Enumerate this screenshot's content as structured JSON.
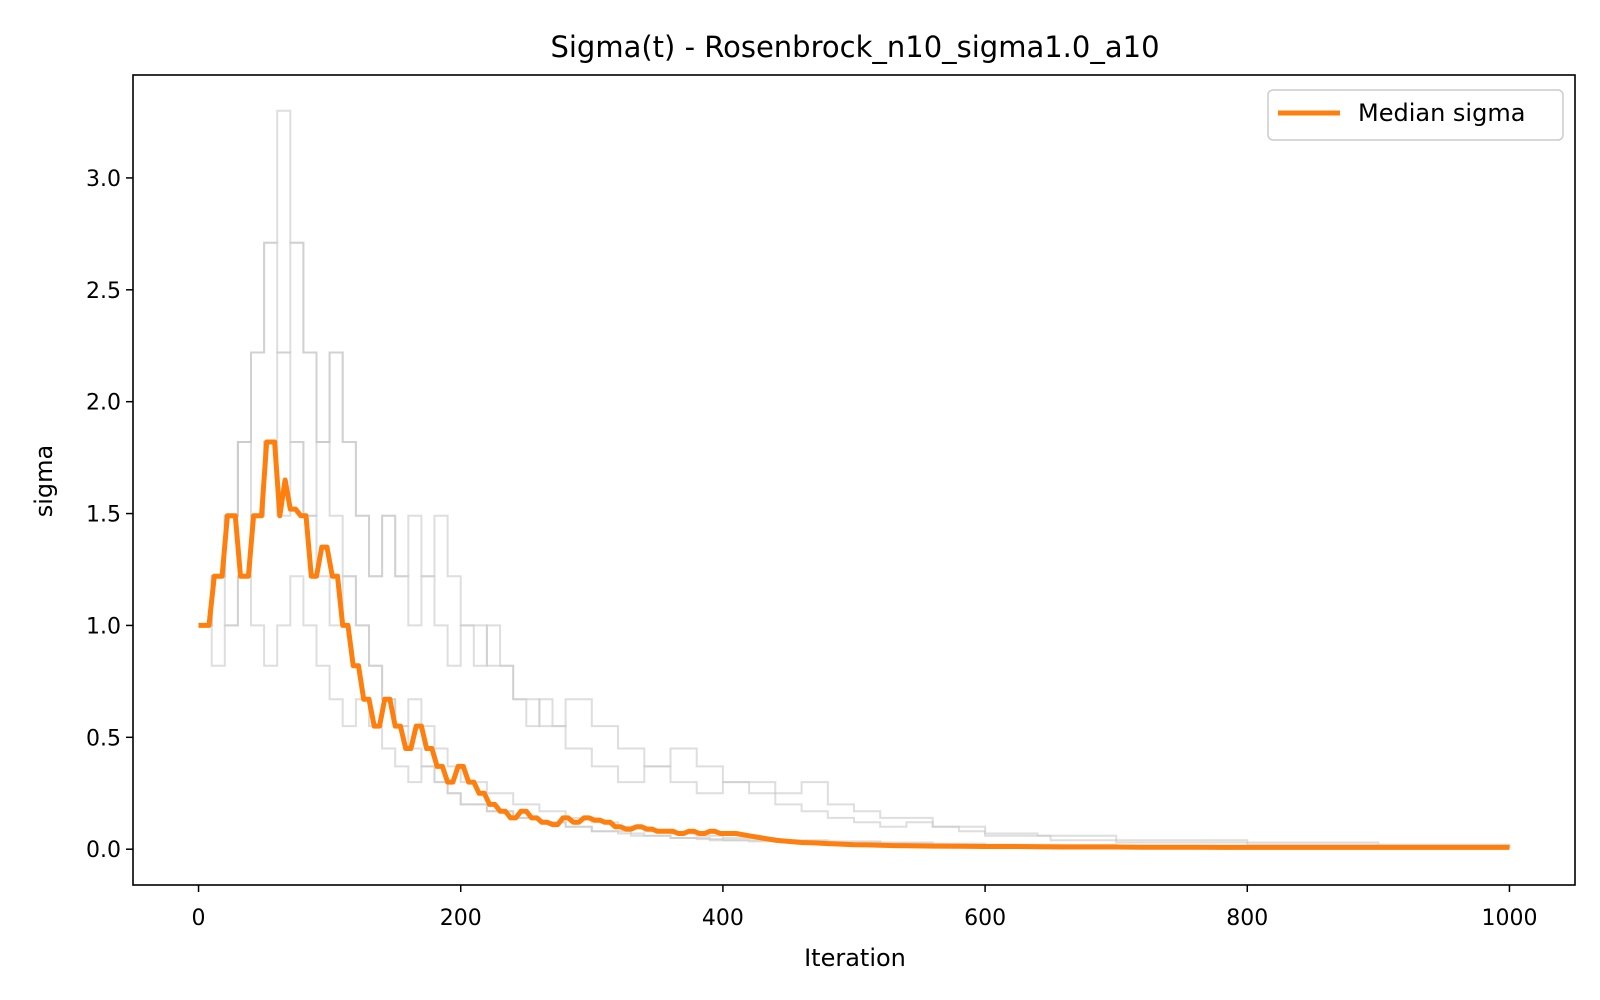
{
  "chart_data": {
    "type": "line",
    "title": "Sigma(t) - Rosenbrock_n10_sigma1.0_a10",
    "xlabel": "Iteration",
    "ylabel": "sigma",
    "xlim": [
      -50,
      1050
    ],
    "ylim": [
      -0.16,
      3.46
    ],
    "xticks": [
      0,
      200,
      400,
      600,
      800,
      1000
    ],
    "xtick_labels": [
      "0",
      "200",
      "400",
      "600",
      "800",
      "1000"
    ],
    "yticks": [
      0.0,
      0.5,
      1.0,
      1.5,
      2.0,
      2.5,
      3.0
    ],
    "ytick_labels": [
      "0.0",
      "0.5",
      "1.0",
      "1.5",
      "2.0",
      "2.5",
      "3.0"
    ],
    "grid": false,
    "legend": {
      "position": "upper right",
      "entries": [
        "Median sigma"
      ]
    },
    "colors": {
      "median": "#ff7f0e",
      "runs": "#c8c8c8"
    },
    "runs": [
      {
        "x": [
          0,
          10,
          20,
          30,
          40,
          50,
          60,
          70,
          80,
          90,
          100,
          110,
          120,
          130,
          140,
          150,
          160,
          170,
          180,
          190,
          200,
          220,
          240,
          260,
          280,
          300,
          330,
          360,
          390,
          420,
          450,
          480,
          520,
          560,
          600,
          650,
          700,
          800,
          900,
          1000
        ],
        "y": [
          1.0,
          1.22,
          1.49,
          1.82,
          2.22,
          2.71,
          3.3,
          2.71,
          2.22,
          1.82,
          1.49,
          1.22,
          1.0,
          0.82,
          0.67,
          0.55,
          0.45,
          0.37,
          0.3,
          0.25,
          0.2,
          0.17,
          0.14,
          0.12,
          0.1,
          0.08,
          0.06,
          0.05,
          0.04,
          0.035,
          0.03,
          0.025,
          0.02,
          0.015,
          0.012,
          0.01,
          0.008,
          0.006,
          0.005,
          0.005
        ]
      },
      {
        "x": [
          0,
          10,
          20,
          30,
          40,
          50,
          60,
          70,
          80,
          90,
          100,
          110,
          120,
          130,
          140,
          150,
          160,
          170,
          180,
          190,
          200,
          210,
          220,
          230,
          240,
          250,
          260,
          270,
          280,
          300,
          320,
          340,
          360,
          380,
          400,
          420,
          440,
          460,
          480,
          500,
          520,
          560,
          600,
          650,
          700,
          800,
          900,
          1000
        ],
        "y": [
          1.0,
          1.22,
          1.49,
          1.82,
          2.22,
          2.71,
          2.22,
          2.71,
          2.22,
          1.82,
          2.22,
          1.82,
          1.49,
          1.22,
          1.49,
          1.22,
          1.49,
          1.22,
          1.49,
          1.22,
          1.0,
          0.82,
          1.0,
          0.82,
          0.67,
          0.55,
          0.67,
          0.55,
          0.45,
          0.37,
          0.3,
          0.37,
          0.45,
          0.37,
          0.3,
          0.3,
          0.25,
          0.3,
          0.2,
          0.17,
          0.14,
          0.1,
          0.06,
          0.04,
          0.03,
          0.02,
          0.015,
          0.01
        ]
      },
      {
        "x": [
          0,
          10,
          20,
          30,
          40,
          50,
          60,
          70,
          80,
          90,
          100,
          110,
          120,
          130,
          140,
          150,
          160,
          170,
          180,
          190,
          200,
          220,
          240,
          260,
          280,
          300,
          320,
          340,
          360,
          380,
          400,
          440,
          480,
          520,
          560,
          600,
          700,
          800,
          900,
          1000
        ],
        "y": [
          1.0,
          0.82,
          1.0,
          1.22,
          1.0,
          0.82,
          1.0,
          1.22,
          1.0,
          0.82,
          0.67,
          0.55,
          0.67,
          0.55,
          0.45,
          0.37,
          0.3,
          0.37,
          0.3,
          0.25,
          0.2,
          0.17,
          0.14,
          0.12,
          0.1,
          0.08,
          0.07,
          0.06,
          0.05,
          0.045,
          0.04,
          0.035,
          0.03,
          0.025,
          0.02,
          0.015,
          0.01,
          0.008,
          0.006,
          0.005
        ]
      },
      {
        "x": [
          0,
          10,
          20,
          30,
          40,
          50,
          60,
          70,
          80,
          90,
          100,
          110,
          120,
          130,
          140,
          150,
          160,
          170,
          180,
          190,
          200,
          220,
          240,
          260,
          280,
          300,
          320,
          340,
          360,
          380,
          400,
          440,
          480,
          520,
          560,
          600,
          700,
          800,
          900,
          1000
        ],
        "y": [
          1.0,
          1.22,
          1.49,
          1.82,
          1.49,
          1.82,
          2.22,
          1.82,
          1.49,
          1.22,
          1.0,
          1.22,
          1.0,
          0.82,
          0.67,
          0.55,
          0.67,
          0.55,
          0.45,
          0.37,
          0.3,
          0.25,
          0.2,
          0.17,
          0.14,
          0.12,
          0.1,
          0.08,
          0.07,
          0.06,
          0.05,
          0.04,
          0.035,
          0.03,
          0.025,
          0.02,
          0.015,
          0.01,
          0.008,
          0.006
        ]
      },
      {
        "x": [
          0,
          10,
          20,
          30,
          40,
          50,
          60,
          70,
          80,
          90,
          100,
          110,
          120,
          130,
          140,
          150,
          160,
          170,
          180,
          190,
          200,
          220,
          240,
          260,
          280,
          300,
          320,
          340,
          360,
          380,
          400,
          420,
          440,
          460,
          480,
          500,
          520,
          540,
          560,
          580,
          600,
          640,
          700,
          800,
          900,
          1000
        ],
        "y": [
          1.0,
          1.22,
          1.0,
          1.22,
          1.49,
          1.82,
          1.49,
          1.82,
          1.49,
          1.82,
          2.22,
          1.82,
          1.49,
          1.22,
          1.49,
          1.22,
          1.0,
          1.22,
          1.0,
          0.82,
          1.0,
          0.82,
          0.67,
          0.55,
          0.67,
          0.55,
          0.45,
          0.37,
          0.3,
          0.25,
          0.3,
          0.25,
          0.2,
          0.17,
          0.14,
          0.12,
          0.1,
          0.12,
          0.1,
          0.08,
          0.07,
          0.06,
          0.04,
          0.03,
          0.02,
          0.015
        ]
      }
    ],
    "series": [
      {
        "name": "Median sigma",
        "x": [
          0,
          8,
          12,
          18,
          22,
          28,
          32,
          38,
          42,
          48,
          52,
          58,
          62,
          66,
          70,
          74,
          78,
          82,
          86,
          90,
          94,
          98,
          102,
          106,
          110,
          114,
          118,
          122,
          126,
          130,
          134,
          138,
          142,
          146,
          150,
          154,
          158,
          162,
          166,
          170,
          174,
          178,
          182,
          186,
          190,
          194,
          198,
          202,
          206,
          210,
          214,
          218,
          222,
          226,
          230,
          234,
          238,
          242,
          246,
          250,
          254,
          258,
          262,
          266,
          270,
          274,
          278,
          282,
          286,
          290,
          294,
          298,
          302,
          306,
          310,
          314,
          318,
          322,
          326,
          330,
          334,
          338,
          342,
          346,
          350,
          354,
          358,
          362,
          366,
          370,
          374,
          378,
          382,
          386,
          390,
          394,
          398,
          402,
          410,
          420,
          430,
          440,
          450,
          460,
          470,
          480,
          490,
          500,
          510,
          520,
          530,
          540,
          560,
          580,
          600,
          620,
          640,
          660,
          680,
          700,
          720,
          740,
          760,
          780,
          800,
          820,
          840,
          860,
          880,
          900,
          920,
          940,
          960,
          980,
          1000
        ],
        "y": [
          1.0,
          1.0,
          1.22,
          1.22,
          1.49,
          1.49,
          1.22,
          1.22,
          1.49,
          1.49,
          1.82,
          1.82,
          1.49,
          1.65,
          1.52,
          1.52,
          1.49,
          1.49,
          1.22,
          1.22,
          1.35,
          1.35,
          1.22,
          1.22,
          1.0,
          1.0,
          0.82,
          0.82,
          0.67,
          0.67,
          0.55,
          0.55,
          0.67,
          0.67,
          0.55,
          0.55,
          0.45,
          0.45,
          0.55,
          0.55,
          0.45,
          0.45,
          0.37,
          0.37,
          0.3,
          0.3,
          0.37,
          0.37,
          0.3,
          0.3,
          0.25,
          0.25,
          0.2,
          0.2,
          0.17,
          0.17,
          0.14,
          0.14,
          0.17,
          0.17,
          0.14,
          0.14,
          0.12,
          0.12,
          0.11,
          0.11,
          0.14,
          0.14,
          0.12,
          0.12,
          0.14,
          0.14,
          0.13,
          0.13,
          0.12,
          0.12,
          0.1,
          0.1,
          0.09,
          0.09,
          0.1,
          0.1,
          0.09,
          0.09,
          0.08,
          0.08,
          0.08,
          0.08,
          0.07,
          0.07,
          0.08,
          0.08,
          0.07,
          0.07,
          0.08,
          0.08,
          0.07,
          0.07,
          0.07,
          0.06,
          0.05,
          0.04,
          0.035,
          0.03,
          0.028,
          0.025,
          0.023,
          0.02,
          0.019,
          0.018,
          0.016,
          0.015,
          0.014,
          0.013,
          0.012,
          0.012,
          0.011,
          0.01,
          0.01,
          0.01,
          0.009,
          0.009,
          0.009,
          0.008,
          0.008,
          0.008,
          0.008,
          0.008,
          0.008,
          0.008,
          0.008,
          0.008,
          0.008,
          0.008,
          0.008
        ]
      }
    ]
  }
}
